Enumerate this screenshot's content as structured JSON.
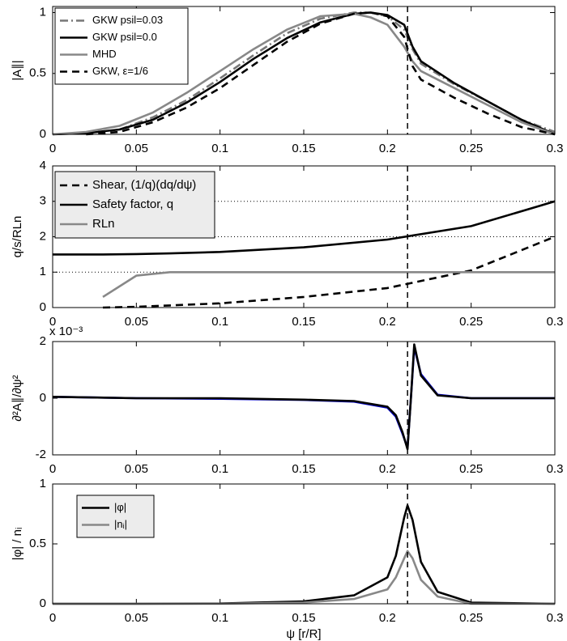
{
  "chart_data": [
    {
      "type": "line",
      "y_label": "|A∥|",
      "x": [
        0,
        0.02,
        0.04,
        0.06,
        0.08,
        0.1,
        0.12,
        0.14,
        0.16,
        0.18,
        0.19,
        0.2,
        0.21,
        0.215,
        0.22,
        0.24,
        0.26,
        0.28,
        0.3
      ],
      "series": [
        {
          "name": "GKW psil=0.03",
          "color": "#777777",
          "dash": "dashdot",
          "values": [
            null,
            null,
            0.04,
            0.14,
            0.28,
            0.46,
            0.65,
            0.83,
            0.95,
            1.0,
            1.0,
            0.97,
            0.86,
            0.7,
            0.58,
            0.41,
            0.27,
            0.12,
            0.02
          ]
        },
        {
          "name": "GKW psil=0.0",
          "color": "#000000",
          "dash": "solid",
          "values": [
            0,
            0.01,
            0.04,
            0.12,
            0.26,
            0.43,
            0.62,
            0.79,
            0.92,
            0.99,
            1.0,
            0.98,
            0.9,
            0.72,
            0.6,
            0.42,
            0.27,
            0.12,
            0
          ]
        },
        {
          "name": "MHD",
          "color": "#888888",
          "dash": "solid",
          "values": [
            0,
            0.02,
            0.07,
            0.18,
            0.34,
            0.52,
            0.7,
            0.86,
            0.97,
            0.99,
            0.96,
            0.9,
            0.72,
            0.6,
            0.52,
            0.38,
            0.24,
            0.1,
            0
          ]
        },
        {
          "name": "GKW, ε=1/6",
          "color": "#000000",
          "dash": "dashed",
          "values": [
            null,
            0,
            0.02,
            0.1,
            0.22,
            0.38,
            0.57,
            0.76,
            0.91,
            0.99,
            1.0,
            0.97,
            0.8,
            0.56,
            0.45,
            0.3,
            0.17,
            0.06,
            0
          ]
        }
      ],
      "xlim": [
        0,
        0.3
      ],
      "xticks": [
        0,
        0.05,
        0.1,
        0.15,
        0.2,
        0.25,
        0.3
      ],
      "ylim": [
        0,
        1.05
      ],
      "yticks": [
        0,
        0.5,
        1
      ],
      "vline": 0.212,
      "legend": "upper left"
    },
    {
      "type": "line",
      "y_label": "q/s/RLn",
      "x": [
        0,
        0.03,
        0.05,
        0.07,
        0.1,
        0.15,
        0.2,
        0.25,
        0.3
      ],
      "series": [
        {
          "name": "Shear, (1/q)(dq/dψ)",
          "color": "#000000",
          "dash": "dashed",
          "values": [
            null,
            0,
            0.02,
            0.06,
            0.12,
            0.3,
            0.55,
            1.05,
            2.0
          ]
        },
        {
          "name": "Safety factor, q",
          "color": "#000000",
          "dash": "solid",
          "values": [
            1.5,
            1.5,
            1.51,
            1.53,
            1.57,
            1.7,
            1.92,
            2.3,
            3.0
          ]
        },
        {
          "name": "RLn",
          "color": "#888888",
          "dash": "solid",
          "values": [
            null,
            0.3,
            0.9,
            1.0,
            1.0,
            1.0,
            1.0,
            1.0,
            1.0
          ]
        }
      ],
      "xlim": [
        0,
        0.3
      ],
      "xticks": [
        0,
        0.05,
        0.1,
        0.15,
        0.2,
        0.25,
        0.3
      ],
      "ylim": [
        0,
        4
      ],
      "yticks": [
        0,
        1,
        2,
        3,
        4
      ],
      "hlines": [
        1,
        2,
        3
      ],
      "vline": 0.212,
      "legend": "upper left"
    },
    {
      "type": "line",
      "y_label": "∂²A∥/∂ψ²",
      "y_multiplier": "x 10⁻³",
      "x": [
        0,
        0.05,
        0.1,
        0.15,
        0.18,
        0.2,
        0.205,
        0.209,
        0.212,
        0.214,
        0.216,
        0.22,
        0.23,
        0.25,
        0.3
      ],
      "series": [
        {
          "color": "#0000cc",
          "dash": "solid",
          "values": [
            0.05,
            0,
            -0.02,
            -0.06,
            -0.12,
            -0.33,
            -0.65,
            -1.25,
            -1.75,
            0,
            1.8,
            0.85,
            0.12,
            0,
            0
          ]
        },
        {
          "color": "#000000",
          "dash": "solid",
          "values": [
            0.05,
            0,
            0,
            -0.05,
            -0.1,
            -0.3,
            -0.6,
            -1.2,
            -1.8,
            0,
            1.9,
            0.8,
            0.1,
            0,
            0
          ]
        }
      ],
      "xlim": [
        0,
        0.3
      ],
      "xticks": [
        0,
        0.05,
        0.1,
        0.15,
        0.2,
        0.25,
        0.3
      ],
      "ylim": [
        -2,
        2
      ],
      "yticks": [
        -2,
        0,
        2
      ],
      "vline": 0.212
    },
    {
      "type": "line",
      "y_label": "|φ| / nᵢ",
      "x_label": "ψ [r/R]",
      "x": [
        0,
        0.05,
        0.1,
        0.15,
        0.18,
        0.2,
        0.205,
        0.21,
        0.212,
        0.215,
        0.22,
        0.23,
        0.25,
        0.3
      ],
      "series": [
        {
          "name": "|φ|",
          "color": "#000000",
          "dash": "solid",
          "values": [
            0,
            0,
            0.002,
            0.02,
            0.07,
            0.22,
            0.4,
            0.72,
            0.82,
            0.7,
            0.35,
            0.1,
            0.01,
            0
          ]
        },
        {
          "name": "|nᵢ|",
          "color": "#888888",
          "dash": "solid",
          "values": [
            0,
            0,
            0,
            0.01,
            0.04,
            0.12,
            0.22,
            0.38,
            0.44,
            0.38,
            0.2,
            0.06,
            0,
            0
          ]
        }
      ],
      "xlim": [
        0,
        0.3
      ],
      "xticks": [
        0,
        0.05,
        0.1,
        0.15,
        0.2,
        0.25,
        0.3
      ],
      "ylim": [
        0,
        1
      ],
      "yticks": [
        0,
        0.5,
        1
      ],
      "vline": 0.212,
      "legend": "upper left inset"
    }
  ]
}
